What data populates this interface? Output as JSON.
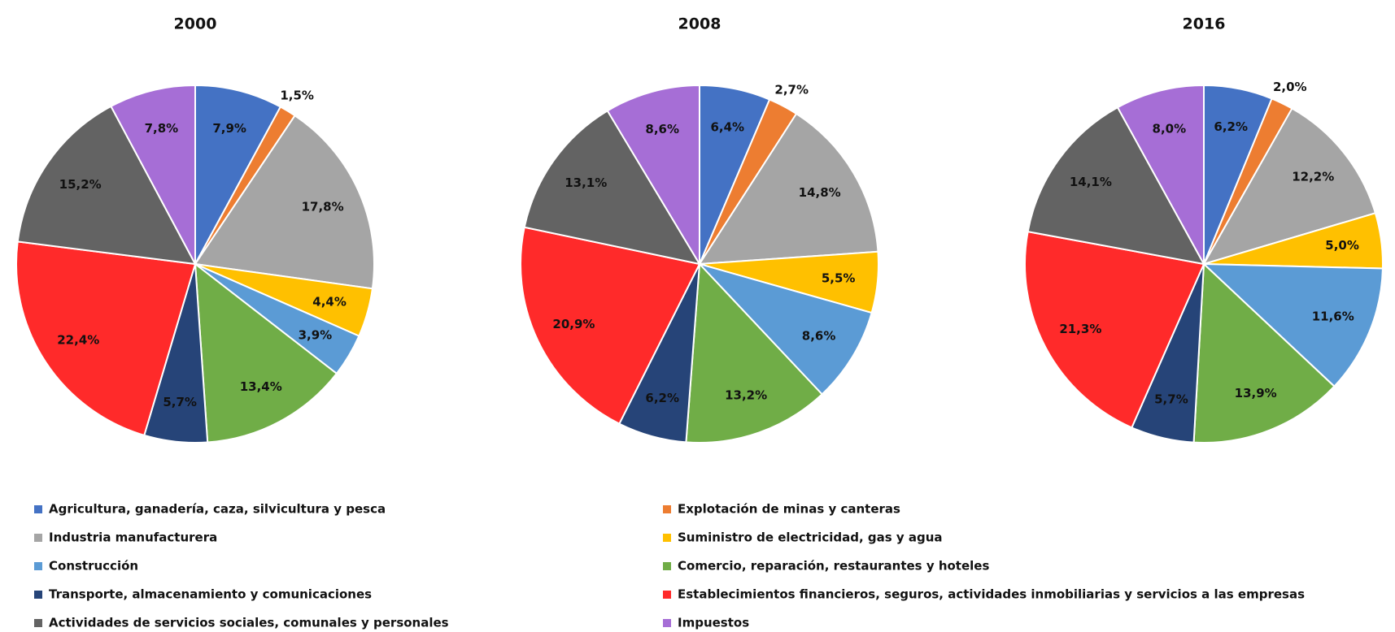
{
  "legend": {
    "categories": [
      "Agricultura, ganadería, caza, silvicultura y pesca",
      "Explotación de minas y canteras",
      "Industria manufacturera",
      "Suministro de electricidad, gas y agua",
      "Construcción",
      "Comercio, reparación, restaurantes y hoteles",
      "Transporte, almacenamiento y comunicaciones",
      "Establecimientos financieros, seguros, actividades inmobiliarias y servicios a las empresas",
      "Actividades de servicios sociales, comunales y personales",
      "Impuestos"
    ],
    "colors": [
      "#4472c4",
      "#ed7d31",
      "#a5a5a5",
      "#ffc000",
      "#5b9bd5",
      "#70ad47",
      "#264478",
      "#ff2a2a",
      "#636363",
      "#a66ed6"
    ]
  },
  "chart_data": [
    {
      "type": "pie",
      "title": "2000",
      "values": [
        7.9,
        1.5,
        17.8,
        4.4,
        3.9,
        13.4,
        5.7,
        22.4,
        15.2,
        7.8
      ],
      "value_labels": [
        "7,9%",
        "1,5%",
        "17,8%",
        "4,4%",
        "3,9%",
        "13,4%",
        "5,7%",
        "22,4%",
        "15,2%",
        "7,8%"
      ]
    },
    {
      "type": "pie",
      "title": "2008",
      "values": [
        6.4,
        2.7,
        14.8,
        5.5,
        8.6,
        13.2,
        6.2,
        20.9,
        13.1,
        8.6
      ],
      "value_labels": [
        "6,4%",
        "2,7%",
        "14,8%",
        "5,5%",
        "8,6%",
        "13,2%",
        "6,2%",
        "20,9%",
        "13,1%",
        "8,6%"
      ]
    },
    {
      "type": "pie",
      "title": "2016",
      "values": [
        6.2,
        2.0,
        12.2,
        5.0,
        11.6,
        13.9,
        5.7,
        21.3,
        14.1,
        8.0
      ],
      "value_labels": [
        "6,2%",
        "2,0%",
        "12,2%",
        "5,0%",
        "11,6%",
        "13,9%",
        "5,7%",
        "21,3%",
        "14,1%",
        "8,0%"
      ]
    }
  ]
}
